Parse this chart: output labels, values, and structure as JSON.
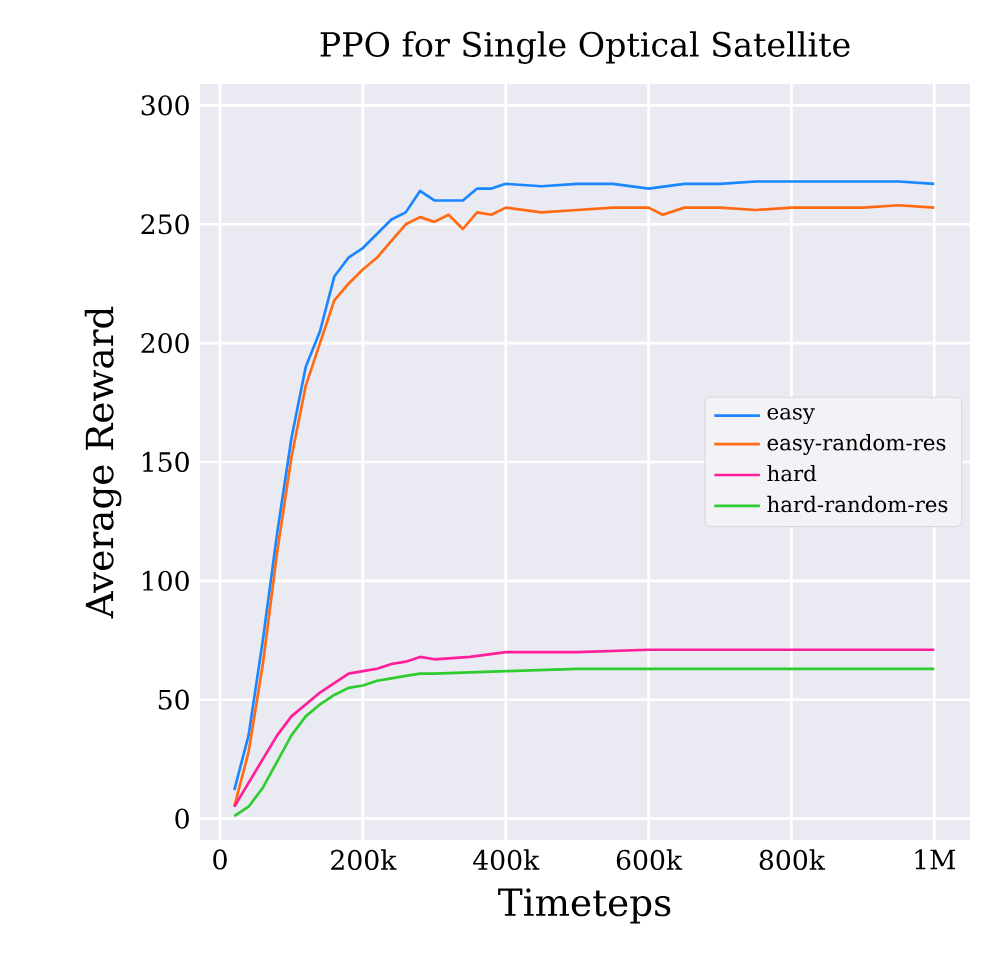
{
  "chart_data": {
    "type": "line",
    "title": "PPO for Single Optical Satellite",
    "xlabel": "Timeteps",
    "ylabel": "Average Reward",
    "xlim": [
      -28000,
      1050000
    ],
    "ylim": [
      -9,
      309
    ],
    "xticks": [
      0,
      {
        "value": 200000,
        "label": "200k"
      },
      {
        "value": 400000,
        "label": "400k"
      },
      {
        "value": 600000,
        "label": "600k"
      },
      {
        "value": 800000,
        "label": "800k"
      },
      {
        "value": 1000000,
        "label": "1M"
      }
    ],
    "yticks": [
      0,
      50,
      100,
      150,
      200,
      250,
      300
    ],
    "grid": true,
    "legend": "right",
    "line_style": "solid",
    "marker": "none",
    "series": [
      {
        "name": "easy",
        "color": "#1a86ff",
        "x": [
          20000,
          40000,
          60000,
          80000,
          100000,
          120000,
          140000,
          160000,
          180000,
          200000,
          220000,
          240000,
          260000,
          280000,
          300000,
          340000,
          360000,
          380000,
          400000,
          450000,
          500000,
          550000,
          600000,
          650000,
          700000,
          750000,
          800000,
          850000,
          900000,
          950000,
          1000000
        ],
        "values": [
          12,
          35,
          75,
          120,
          160,
          190,
          205,
          228,
          236,
          240,
          246,
          252,
          255,
          264,
          260,
          260,
          265,
          265,
          267,
          266,
          267,
          267,
          265,
          267,
          267,
          268,
          268,
          268,
          268,
          268,
          267
        ]
      },
      {
        "name": "easy-random-res",
        "color": "#ff6a13",
        "x": [
          20000,
          40000,
          60000,
          80000,
          100000,
          120000,
          140000,
          160000,
          180000,
          200000,
          220000,
          240000,
          260000,
          280000,
          300000,
          320000,
          340000,
          360000,
          380000,
          400000,
          450000,
          500000,
          550000,
          600000,
          620000,
          650000,
          700000,
          750000,
          800000,
          850000,
          900000,
          950000,
          1000000
        ],
        "values": [
          5,
          28,
          65,
          112,
          152,
          182,
          200,
          218,
          225,
          231,
          236,
          243,
          250,
          253,
          251,
          254,
          248,
          255,
          254,
          257,
          255,
          256,
          257,
          257,
          254,
          257,
          257,
          256,
          257,
          257,
          257,
          258,
          257
        ]
      },
      {
        "name": "hard",
        "color": "#ff1f9a",
        "x": [
          20000,
          40000,
          60000,
          80000,
          100000,
          120000,
          140000,
          160000,
          180000,
          200000,
          220000,
          240000,
          260000,
          280000,
          300000,
          350000,
          400000,
          500000,
          600000,
          700000,
          800000,
          900000,
          1000000
        ],
        "values": [
          5,
          15,
          25,
          35,
          43,
          48,
          53,
          57,
          61,
          62,
          63,
          65,
          66,
          68,
          67,
          68,
          70,
          70,
          71,
          71,
          71,
          71,
          71
        ]
      },
      {
        "name": "hard-random-res",
        "color": "#2ecc2e",
        "x": [
          20000,
          40000,
          60000,
          80000,
          100000,
          120000,
          140000,
          160000,
          180000,
          200000,
          220000,
          240000,
          260000,
          280000,
          300000,
          400000,
          500000,
          600000,
          700000,
          800000,
          900000,
          1000000
        ],
        "values": [
          1,
          5,
          13,
          24,
          35,
          43,
          48,
          52,
          55,
          56,
          58,
          59,
          60,
          61,
          61,
          62,
          63,
          63,
          63,
          63,
          63,
          63
        ]
      }
    ]
  }
}
